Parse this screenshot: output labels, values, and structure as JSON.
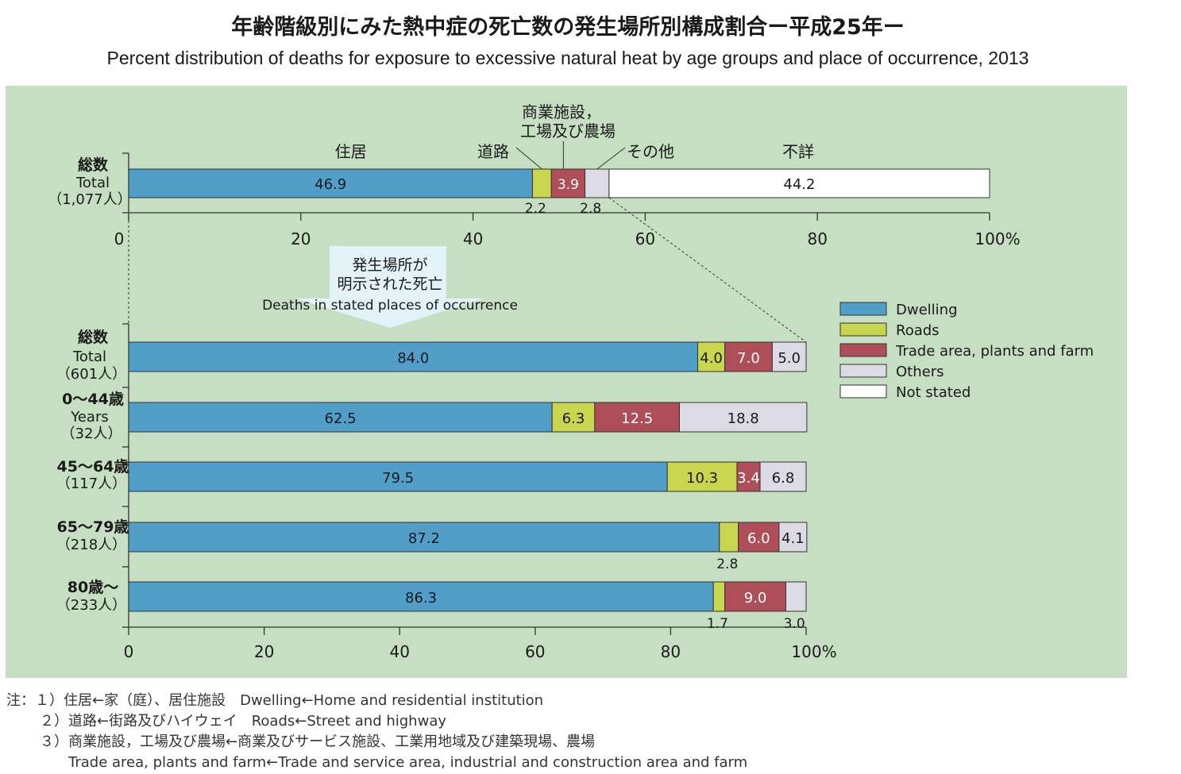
{
  "title_jp": "年齢階級別にみた熱中症の死亡数の発生場所別構成割合ー平成25年ー",
  "title_en": "Percent distribution of deaths for exposure to excessive natural heat by age groups and place of occurrence, 2013",
  "colors": {
    "background": "#c6dfc2",
    "dwelling": "#519ec9",
    "roads": "#c9d54e",
    "trade": "#ad4e59",
    "others": "#dcdbe5",
    "not_stated": "#ffffff"
  },
  "chart_data": [
    {
      "type": "bar",
      "orientation": "horizontal",
      "stacked": true,
      "xlim": [
        0,
        100
      ],
      "x_ticks": [
        "0",
        "20",
        "40",
        "60",
        "80",
        "100%"
      ],
      "categories": [
        {
          "jp": "総数",
          "en": "Total",
          "count": "（1,077人）"
        }
      ],
      "series": [
        {
          "name": "住居",
          "key": "dwelling",
          "values": [
            46.9
          ]
        },
        {
          "name": "道路",
          "key": "roads",
          "values": [
            2.2
          ]
        },
        {
          "name": "商業施設，工場及び農場",
          "key": "trade",
          "values": [
            3.9
          ]
        },
        {
          "name": "その他",
          "key": "others",
          "values": [
            2.8
          ]
        },
        {
          "name": "不詳",
          "key": "not_stated",
          "values": [
            44.2
          ]
        }
      ],
      "segment_labels": {
        "dwelling": "住居",
        "roads": "道路",
        "trade_line1": "商業施設，",
        "trade_line2": "工場及び農場",
        "others": "その他",
        "not_stated": "不詳"
      }
    },
    {
      "type": "bar",
      "orientation": "horizontal",
      "stacked": true,
      "xlim": [
        0,
        100
      ],
      "x_ticks": [
        "0",
        "20",
        "40",
        "60",
        "80",
        "100%"
      ],
      "annotation": {
        "jp_line1": "発生場所が",
        "jp_line2": "明示された死亡",
        "en": "Deaths in stated places of occurrence"
      },
      "categories": [
        {
          "jp": "総数",
          "en": "Total",
          "count": "（601人）"
        },
        {
          "jp": "0〜44歳",
          "en": "Years",
          "count": "（32人）"
        },
        {
          "jp": "45〜64歳",
          "en": "",
          "count": "（117人）"
        },
        {
          "jp": "65〜79歳",
          "en": "",
          "count": "（218人）"
        },
        {
          "jp": "80歳〜",
          "en": "",
          "count": "（233人）"
        }
      ],
      "series": [
        {
          "name": "Dwelling",
          "key": "dwelling",
          "values": [
            84.0,
            62.5,
            79.5,
            87.2,
            86.3
          ]
        },
        {
          "name": "Roads",
          "key": "roads",
          "values": [
            4.0,
            6.3,
            10.3,
            2.8,
            1.7
          ]
        },
        {
          "name": "Trade area, plants and farm",
          "key": "trade",
          "values": [
            7.0,
            12.5,
            3.4,
            6.0,
            9.0
          ]
        },
        {
          "name": "Others",
          "key": "others",
          "values": [
            5.0,
            18.8,
            6.8,
            4.1,
            3.0
          ]
        }
      ],
      "legend": {
        "placement": "right",
        "entries": [
          {
            "label": "Dwelling",
            "key": "dwelling"
          },
          {
            "label": "Roads",
            "key": "roads"
          },
          {
            "label": "Trade area, plants and farm",
            "key": "trade"
          },
          {
            "label": "Others",
            "key": "others"
          },
          {
            "label": "Not stated",
            "key": "not_stated"
          }
        ]
      }
    }
  ],
  "notes": [
    "注：１）住居←家（庭）、居住施設　Dwelling←Home and residential institution",
    "２）道路←街路及びハイウェイ　Roads←Street and highway",
    "３）商業施設，工場及び農場←商業及びサービス施設、工業用地域及び建築現場、農場",
    "Trade area, plants and farm←Trade and service area, industrial and construction area and farm"
  ]
}
